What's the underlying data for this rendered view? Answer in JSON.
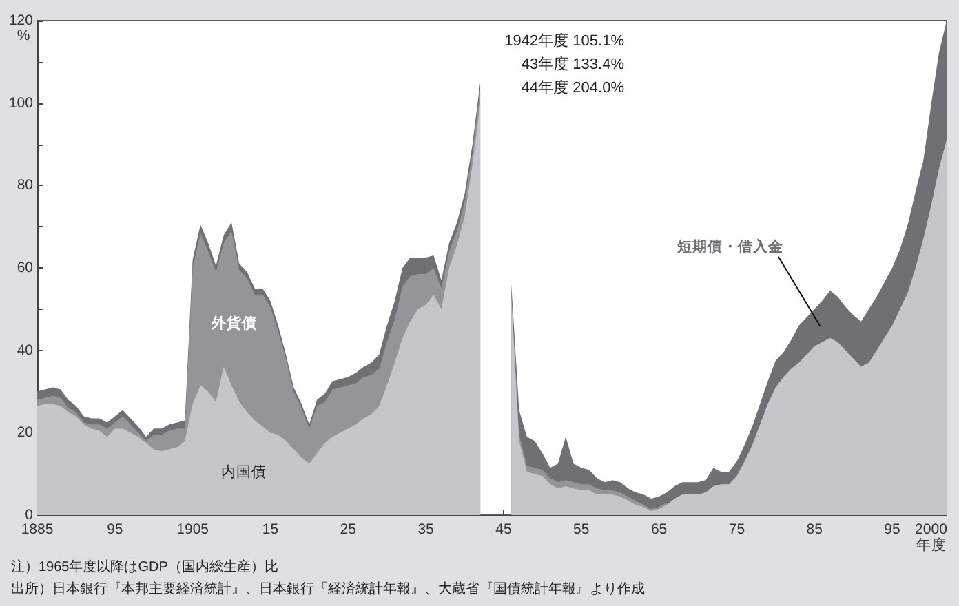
{
  "chart_data": {
    "type": "area",
    "stacked": true,
    "grid": false,
    "xlabel": "年度",
    "ylabel": "%",
    "xlim": [
      1885,
      2002
    ],
    "xticks": [
      1885,
      {
        "value": 1895,
        "label": "95"
      },
      1905,
      {
        "value": 1915,
        "label": "15"
      },
      {
        "value": 1925,
        "label": "25"
      },
      {
        "value": 1935,
        "label": "35"
      },
      {
        "value": 1945,
        "label": "45"
      },
      {
        "value": 1955,
        "label": "55"
      },
      {
        "value": 1965,
        "label": "65"
      },
      {
        "value": 1975,
        "label": "75"
      },
      {
        "value": 1985,
        "label": "85"
      },
      {
        "value": 1995,
        "label": "95"
      },
      2000
    ],
    "ylim": [
      0,
      120
    ],
    "yticks": [
      0,
      {
        "value": 10,
        "label": null
      },
      20,
      {
        "value": 30,
        "label": null
      },
      40,
      {
        "value": 50,
        "label": null
      },
      60,
      {
        "value": 70,
        "label": null
      },
      80,
      {
        "value": 90,
        "label": null
      },
      100,
      {
        "value": 110,
        "label": null
      },
      120
    ],
    "annotations": [
      "1942年度 105.1%",
      "43年度 133.4%",
      "44年度 204.0%",
      "注）1965年度以降はGDP（国内総生産）比",
      "出所）日本銀行『本邦主要経済統計』、日本銀行『経済統計年報』、大蔵省『国債統計年報』より作成"
    ],
    "x": [
      1885,
      1886,
      1887,
      1888,
      1889,
      1890,
      1891,
      1892,
      1893,
      1894,
      1895,
      1896,
      1897,
      1898,
      1899,
      1900,
      1901,
      1902,
      1903,
      1904,
      1905,
      1906,
      1907,
      1908,
      1909,
      1910,
      1911,
      1912,
      1913,
      1914,
      1915,
      1916,
      1917,
      1918,
      1919,
      1920,
      1921,
      1922,
      1923,
      1924,
      1925,
      1926,
      1927,
      1928,
      1929,
      1930,
      1931,
      1932,
      1933,
      1934,
      1935,
      1936,
      1937,
      1938,
      1939,
      1940,
      1941,
      1942,
      1945,
      1946,
      1947,
      1948,
      1949,
      1950,
      1951,
      1952,
      1953,
      1954,
      1955,
      1956,
      1957,
      1958,
      1959,
      1960,
      1961,
      1962,
      1963,
      1964,
      1965,
      1966,
      1967,
      1968,
      1969,
      1970,
      1971,
      1972,
      1973,
      1974,
      1975,
      1976,
      1977,
      1978,
      1979,
      1980,
      1981,
      1982,
      1983,
      1984,
      1985,
      1986,
      1987,
      1988,
      1989,
      1990,
      1991,
      1992,
      1993,
      1994,
      1995,
      1996,
      1997,
      1998,
      1999,
      2000,
      2001,
      2002
    ],
    "series": [
      {
        "name": "内国債",
        "color": "#c4c6c9",
        "values": [
          26.5,
          27,
          27,
          26.5,
          25,
          24,
          22,
          21,
          20.5,
          19,
          21,
          21,
          20,
          19,
          17.5,
          16,
          15.5,
          16,
          16.5,
          18,
          27,
          31.5,
          30,
          27.5,
          36,
          31.5,
          27.5,
          25,
          23,
          21.5,
          20,
          19.5,
          18,
          16,
          14,
          12.5,
          15,
          17.5,
          19,
          20,
          21,
          22,
          23.5,
          24.5,
          26.5,
          31.5,
          37,
          43,
          47,
          50,
          51,
          53.5,
          50,
          60,
          65.5,
          72.5,
          85,
          100.1,
          null,
          53,
          18,
          10.5,
          10,
          9.5,
          7.5,
          6.5,
          7,
          6.5,
          6,
          6,
          5,
          5,
          5,
          4.5,
          3.5,
          2.5,
          2,
          1,
          1.5,
          2.5,
          4,
          5,
          5,
          5,
          5.5,
          7,
          7.5,
          7.5,
          9.5,
          13,
          17,
          22,
          27,
          31,
          33.5,
          35.5,
          37,
          39,
          41,
          42,
          43,
          42,
          40,
          38,
          36,
          37,
          40,
          43,
          46,
          50,
          54,
          60,
          67,
          75,
          84,
          91
        ]
      },
      {
        "name": "外貨債",
        "color": "#939598",
        "values": [
          1.5,
          1.5,
          2,
          2,
          1,
          1,
          0.5,
          1,
          1.5,
          2,
          1.5,
          3,
          2,
          1,
          0.5,
          3.5,
          4,
          4.5,
          4.5,
          3,
          33,
          37,
          34,
          31.5,
          30,
          37.5,
          32,
          32.5,
          30.5,
          32,
          30.5,
          25,
          20,
          14,
          12,
          8.5,
          11.5,
          10,
          11.5,
          11,
          10.5,
          10,
          10,
          9.5,
          9,
          10.5,
          10.5,
          12.5,
          11,
          8.5,
          7.5,
          6.5,
          5,
          4,
          3.5,
          3.5,
          3,
          3,
          null,
          1,
          1.5,
          1.5,
          1.5,
          1.5,
          1.5,
          1.5,
          1.5,
          1.5,
          1.5,
          1.5,
          1.5,
          1,
          1,
          1,
          1,
          1,
          0.5,
          0.5,
          0.5,
          0.5,
          null,
          null,
          null,
          null,
          null,
          null,
          null,
          null,
          null,
          null,
          null,
          null,
          null,
          null,
          null,
          null,
          null,
          null,
          null,
          null,
          null,
          null,
          null,
          null,
          null,
          null,
          null,
          null,
          null,
          null,
          null,
          null,
          null,
          null,
          null,
          null
        ]
      },
      {
        "name": "短期債・借入金",
        "color": "#6e7073",
        "values": [
          2,
          2,
          2,
          2,
          2,
          1.5,
          1.5,
          1.5,
          1.5,
          1.5,
          1.5,
          1.5,
          1.5,
          1.5,
          1,
          1.5,
          1.5,
          1.5,
          1.5,
          2,
          2,
          2,
          2,
          1.5,
          2,
          2,
          1.5,
          1.5,
          1.5,
          1.5,
          1.5,
          1.5,
          1,
          1,
          1,
          1,
          1.5,
          2,
          2,
          2,
          2,
          2.5,
          2.5,
          3,
          3.5,
          4,
          4.5,
          4.5,
          4.5,
          4,
          4,
          3,
          2,
          2,
          2,
          2,
          2,
          2,
          null,
          2,
          6,
          7,
          6.5,
          4,
          2.5,
          4.5,
          10.5,
          4.5,
          4,
          3.5,
          2.5,
          2,
          2.5,
          2.5,
          2,
          2,
          2.5,
          2.5,
          2.5,
          2.5,
          3,
          3,
          3,
          3,
          3,
          4.5,
          3,
          3,
          3.5,
          4,
          4.5,
          5,
          5.5,
          6.5,
          6,
          7,
          9,
          9,
          9,
          10,
          11.5,
          11,
          10.5,
          10.5,
          11,
          13,
          13,
          13.5,
          14,
          14.5,
          16.5,
          18.5,
          19,
          24.5,
          28,
          29
        ]
      }
    ]
  }
}
